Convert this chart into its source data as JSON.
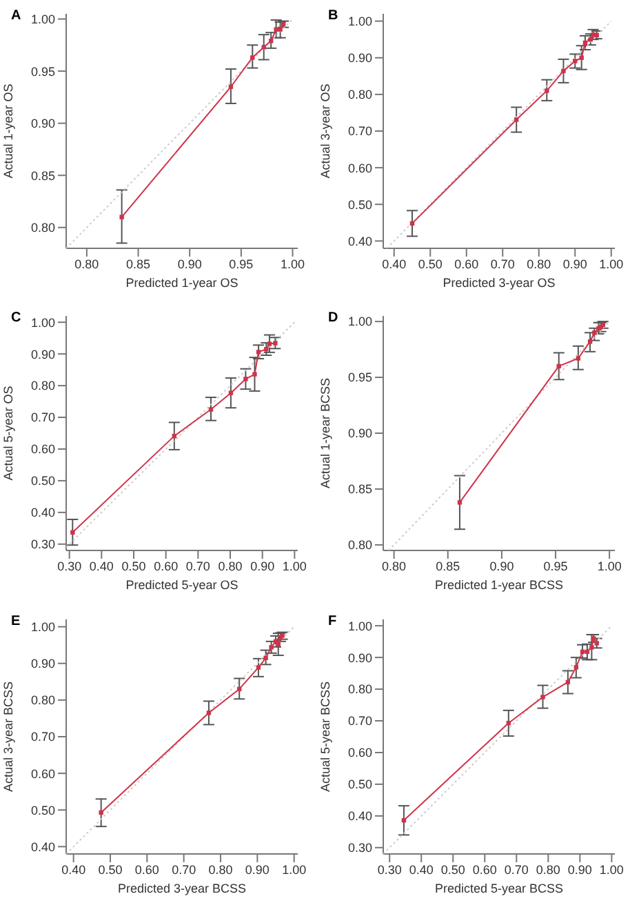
{
  "chart_data": [
    {
      "type": "line",
      "title": "A",
      "xlabel": "Predicted 1-year OS",
      "ylabel": "Actual 1-year OS",
      "xlim": [
        0.78,
        1.005
      ],
      "ylim": [
        0.78,
        1.005
      ],
      "xticks": [
        {
          "value": 0.8,
          "label": "0.80"
        },
        {
          "value": 0.85,
          "label": "0.85"
        },
        {
          "value": 0.9,
          "label": "0.90"
        },
        {
          "value": 0.95,
          "label": "0.95"
        },
        {
          "value": 1,
          "label": "1.00"
        }
      ],
      "yticks": [
        {
          "value": 0.8,
          "label": "0.80"
        },
        {
          "value": 0.85,
          "label": "0.85"
        },
        {
          "value": 0.9,
          "label": "0.90"
        },
        {
          "value": 0.95,
          "label": "0.95"
        },
        {
          "value": 1,
          "label": "1.00"
        }
      ],
      "series": [
        {
          "type": "line",
          "color": "#cccccc",
          "line_style": "dotted",
          "marker": "none",
          "x": [
            0.78,
            1
          ],
          "values": [
            0.78,
            1
          ]
        },
        {
          "type": "line",
          "color": "#d0324a",
          "line_style": "solid",
          "marker": "square",
          "x": [
            0.834,
            0.94,
            0.961,
            0.972,
            0.979,
            0.984,
            0.988,
            0.991
          ],
          "values": [
            0.81,
            0.935,
            0.963,
            0.973,
            0.979,
            0.99,
            0.99,
            0.995
          ],
          "errors": [
            [
              0.785,
              0.836
            ],
            [
              0.919,
              0.952
            ],
            [
              0.953,
              0.975
            ],
            [
              0.961,
              0.985
            ],
            [
              0.972,
              0.987
            ],
            [
              0.982,
              0.999
            ],
            [
              0.982,
              0.997
            ],
            [
              0.992,
              0.998
            ]
          ]
        }
      ]
    },
    {
      "type": "line",
      "title": "B",
      "xlabel": "Predicted 3-year OS",
      "ylabel": "Actual 3-year OS",
      "xlim": [
        0.37,
        1.01
      ],
      "ylim": [
        0.38,
        1.02
      ],
      "xticks": [
        {
          "value": 0.4,
          "label": "0.40"
        },
        {
          "value": 0.5,
          "label": "0.50"
        },
        {
          "value": 0.6,
          "label": "0.60"
        },
        {
          "value": 0.7,
          "label": "0.70"
        },
        {
          "value": 0.8,
          "label": "0.80"
        },
        {
          "value": 0.9,
          "label": "0.90"
        },
        {
          "value": 1,
          "label": "1.00"
        }
      ],
      "yticks": [
        {
          "value": 0.4,
          "label": "0.40"
        },
        {
          "value": 0.5,
          "label": "0.50"
        },
        {
          "value": 0.6,
          "label": "0.60"
        },
        {
          "value": 0.7,
          "label": "0.70"
        },
        {
          "value": 0.8,
          "label": "0.80"
        },
        {
          "value": 0.9,
          "label": "0.90"
        },
        {
          "value": 1,
          "label": "1.00"
        }
      ],
      "series": [
        {
          "type": "line",
          "color": "#cccccc",
          "line_style": "dotted",
          "marker": "none",
          "x": [
            0.38,
            1
          ],
          "values": [
            0.38,
            1
          ]
        },
        {
          "type": "line",
          "color": "#d0324a",
          "line_style": "solid",
          "marker": "square",
          "x": [
            0.45,
            0.738,
            0.822,
            0.868,
            0.9,
            0.918,
            0.928,
            0.943,
            0.95,
            0.96
          ],
          "values": [
            0.448,
            0.731,
            0.81,
            0.864,
            0.891,
            0.9,
            0.941,
            0.95,
            0.963,
            0.962
          ],
          "errors": [
            [
              0.413,
              0.483
            ],
            [
              0.697,
              0.765
            ],
            [
              0.783,
              0.84
            ],
            [
              0.832,
              0.896
            ],
            [
              0.872,
              0.91
            ],
            [
              0.868,
              0.933
            ],
            [
              0.922,
              0.96
            ],
            [
              0.935,
              0.965
            ],
            [
              0.95,
              0.977
            ],
            [
              0.952,
              0.973
            ]
          ]
        }
      ]
    },
    {
      "type": "line",
      "title": "C",
      "xlabel": "Predicted 5-year OS",
      "ylabel": "Actual 5-year OS",
      "xlim": [
        0.29,
        1.01
      ],
      "ylim": [
        0.28,
        1.02
      ],
      "xticks": [
        {
          "value": 0.3,
          "label": "0.30"
        },
        {
          "value": 0.4,
          "label": "0.40"
        },
        {
          "value": 0.5,
          "label": "0.50"
        },
        {
          "value": 0.6,
          "label": "0.60"
        },
        {
          "value": 0.7,
          "label": "0.70"
        },
        {
          "value": 0.8,
          "label": "0.80"
        },
        {
          "value": 0.9,
          "label": "0.90"
        },
        {
          "value": 1,
          "label": "1.00"
        }
      ],
      "yticks": [
        {
          "value": 0.3,
          "label": "0.30"
        },
        {
          "value": 0.4,
          "label": "0.40"
        },
        {
          "value": 0.5,
          "label": "0.50"
        },
        {
          "value": 0.6,
          "label": "0.60"
        },
        {
          "value": 0.7,
          "label": "0.70"
        },
        {
          "value": 0.8,
          "label": "0.80"
        },
        {
          "value": 0.9,
          "label": "0.90"
        },
        {
          "value": 1,
          "label": "1.00"
        }
      ],
      "series": [
        {
          "type": "line",
          "color": "#cccccc",
          "line_style": "dotted",
          "marker": "none",
          "x": [
            0.29,
            1
          ],
          "values": [
            0.29,
            1
          ]
        },
        {
          "type": "line",
          "color": "#d0324a",
          "line_style": "solid",
          "marker": "square",
          "x": [
            0.31,
            0.626,
            0.74,
            0.802,
            0.848,
            0.876,
            0.888,
            0.912,
            0.922,
            0.94
          ],
          "values": [
            0.337,
            0.641,
            0.725,
            0.777,
            0.821,
            0.836,
            0.906,
            0.915,
            0.932,
            0.934
          ],
          "errors": [
            [
              0.297,
              0.378
            ],
            [
              0.598,
              0.684
            ],
            [
              0.69,
              0.763
            ],
            [
              0.73,
              0.824
            ],
            [
              0.789,
              0.853
            ],
            [
              0.783,
              0.889
            ],
            [
              0.885,
              0.928
            ],
            [
              0.896,
              0.935
            ],
            [
              0.905,
              0.96
            ],
            [
              0.917,
              0.952
            ]
          ]
        }
      ]
    },
    {
      "type": "line",
      "title": "D",
      "xlabel": "Predicted 1-year BCSS",
      "ylabel": "Actual 1-year BCSS",
      "xlim": [
        0.79,
        1.005
      ],
      "ylim": [
        0.795,
        1.005
      ],
      "xticks": [
        {
          "value": 0.8,
          "label": "0.80"
        },
        {
          "value": 0.85,
          "label": "0.85"
        },
        {
          "value": 0.9,
          "label": "0.90"
        },
        {
          "value": 0.95,
          "label": "0.95"
        },
        {
          "value": 1,
          "label": "1.00"
        }
      ],
      "yticks": [
        {
          "value": 0.8,
          "label": "0.80"
        },
        {
          "value": 0.85,
          "label": "0.85"
        },
        {
          "value": 0.9,
          "label": "0.90"
        },
        {
          "value": 0.95,
          "label": "0.95"
        },
        {
          "value": 1,
          "label": "1.00"
        }
      ],
      "series": [
        {
          "type": "line",
          "color": "#cccccc",
          "line_style": "dotted",
          "marker": "none",
          "x": [
            0.795,
            1
          ],
          "values": [
            0.795,
            1
          ]
        },
        {
          "type": "line",
          "color": "#d0324a",
          "line_style": "solid",
          "marker": "square",
          "x": [
            0.861,
            0.953,
            0.971,
            0.982,
            0.986,
            0.99,
            0.992,
            0.994
          ],
          "values": [
            0.838,
            0.96,
            0.967,
            0.982,
            0.99,
            0.994,
            0.995,
            0.997
          ],
          "errors": [
            [
              0.814,
              0.862
            ],
            [
              0.948,
              0.972
            ],
            [
              0.957,
              0.978
            ],
            [
              0.973,
              0.99
            ],
            [
              0.983,
              0.994
            ],
            [
              0.989,
              0.999
            ],
            [
              0.991,
              0.999
            ],
            [
              0.994,
              1
            ]
          ]
        }
      ]
    },
    {
      "type": "line",
      "title": "E",
      "xlabel": "Predicted 3-year BCSS",
      "ylabel": "Actual 3-year BCSS",
      "xlim": [
        0.38,
        1.01
      ],
      "ylim": [
        0.38,
        1.02
      ],
      "xticks": [
        {
          "value": 0.4,
          "label": "0.40"
        },
        {
          "value": 0.5,
          "label": "0.50"
        },
        {
          "value": 0.6,
          "label": "0.60"
        },
        {
          "value": 0.7,
          "label": "0.70"
        },
        {
          "value": 0.8,
          "label": "0.80"
        },
        {
          "value": 0.9,
          "label": "0.90"
        },
        {
          "value": 1,
          "label": "1.00"
        }
      ],
      "yticks": [
        {
          "value": 0.4,
          "label": "0.40"
        },
        {
          "value": 0.5,
          "label": "0.50"
        },
        {
          "value": 0.6,
          "label": "0.60"
        },
        {
          "value": 0.7,
          "label": "0.70"
        },
        {
          "value": 0.8,
          "label": "0.80"
        },
        {
          "value": 0.9,
          "label": "0.90"
        },
        {
          "value": 1,
          "label": "1.00"
        }
      ],
      "series": [
        {
          "type": "line",
          "color": "#cccccc",
          "line_style": "dotted",
          "marker": "none",
          "x": [
            0.38,
            1
          ],
          "values": [
            0.38,
            1
          ]
        },
        {
          "type": "line",
          "color": "#d0324a",
          "line_style": "solid",
          "marker": "square",
          "x": [
            0.475,
            0.768,
            0.851,
            0.903,
            0.923,
            0.938,
            0.95,
            0.957,
            0.963,
            0.968
          ],
          "values": [
            0.493,
            0.765,
            0.83,
            0.889,
            0.915,
            0.944,
            0.96,
            0.952,
            0.97,
            0.976
          ],
          "errors": [
            [
              0.455,
              0.53
            ],
            [
              0.733,
              0.797
            ],
            [
              0.803,
              0.859
            ],
            [
              0.864,
              0.913
            ],
            [
              0.897,
              0.936
            ],
            [
              0.928,
              0.96
            ],
            [
              0.945,
              0.975
            ],
            [
              0.922,
              0.982
            ],
            [
              0.96,
              0.983
            ],
            [
              0.966,
              0.985
            ]
          ]
        }
      ]
    },
    {
      "type": "line",
      "title": "F",
      "xlabel": "Predicted 5-year BCSS",
      "ylabel": "Actual 5-year BCSS",
      "xlim": [
        0.28,
        1.01
      ],
      "ylim": [
        0.28,
        1.02
      ],
      "xticks": [
        {
          "value": 0.3,
          "label": "0.30"
        },
        {
          "value": 0.4,
          "label": "0.40"
        },
        {
          "value": 0.5,
          "label": "0.50"
        },
        {
          "value": 0.6,
          "label": "0.60"
        },
        {
          "value": 0.7,
          "label": "0.70"
        },
        {
          "value": 0.8,
          "label": "0.80"
        },
        {
          "value": 0.9,
          "label": "0.90"
        },
        {
          "value": 1,
          "label": "1.00"
        }
      ],
      "yticks": [
        {
          "value": 0.3,
          "label": "0.30"
        },
        {
          "value": 0.4,
          "label": "0.40"
        },
        {
          "value": 0.5,
          "label": "0.50"
        },
        {
          "value": 0.6,
          "label": "0.60"
        },
        {
          "value": 0.7,
          "label": "0.70"
        },
        {
          "value": 0.8,
          "label": "0.80"
        },
        {
          "value": 0.9,
          "label": "0.90"
        },
        {
          "value": 1,
          "label": "1.00"
        }
      ],
      "series": [
        {
          "type": "line",
          "color": "#cccccc",
          "line_style": "dotted",
          "marker": "none",
          "x": [
            0.28,
            1
          ],
          "values": [
            0.28,
            1
          ]
        },
        {
          "type": "line",
          "color": "#d0324a",
          "line_style": "solid",
          "marker": "square",
          "x": [
            0.345,
            0.675,
            0.783,
            0.862,
            0.888,
            0.908,
            0.923,
            0.937,
            0.943,
            0.953
          ],
          "values": [
            0.386,
            0.693,
            0.775,
            0.822,
            0.869,
            0.918,
            0.918,
            0.932,
            0.96,
            0.945
          ],
          "errors": [
            [
              0.34,
              0.432
            ],
            [
              0.652,
              0.733
            ],
            [
              0.74,
              0.812
            ],
            [
              0.786,
              0.858
            ],
            [
              0.836,
              0.9
            ],
            [
              0.898,
              0.94
            ],
            [
              0.893,
              0.942
            ],
            [
              0.893,
              0.972
            ],
            [
              0.948,
              0.972
            ],
            [
              0.93,
              0.96
            ]
          ]
        }
      ]
    }
  ]
}
